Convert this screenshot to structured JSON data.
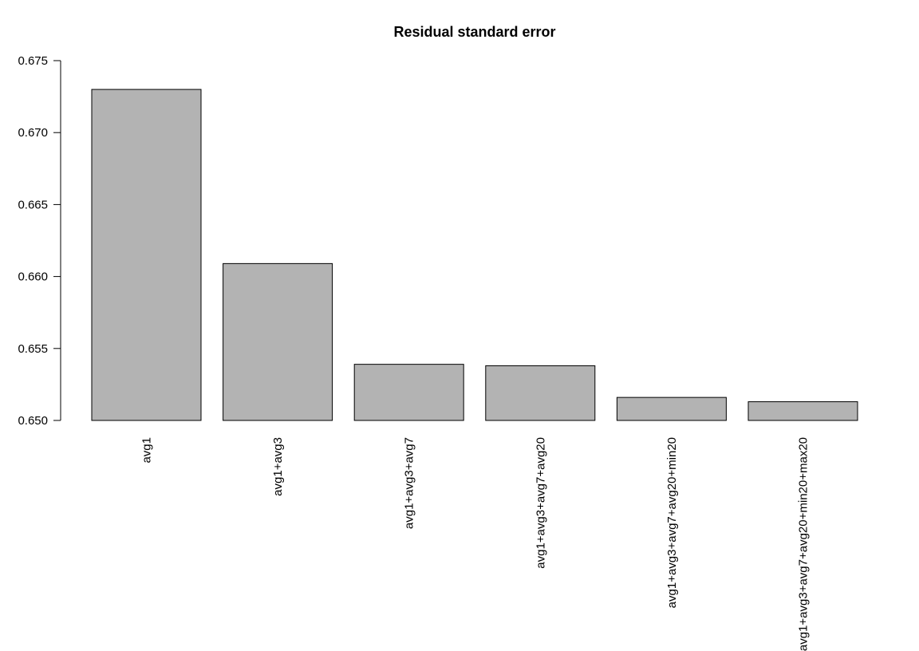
{
  "chart_data": {
    "type": "bar",
    "title": "Residual standard error",
    "xlabel": "",
    "ylabel": "",
    "categories": [
      "avg1",
      "avg1+avg3",
      "avg1+avg3+avg7",
      "avg1+avg3+avg7+avg20",
      "avg1+avg3+avg7+avg20+min20",
      "avg1+avg3+avg7+avg20+min20+max20"
    ],
    "values": [
      0.673,
      0.6609,
      0.6539,
      0.6538,
      0.6516,
      0.6513
    ],
    "ylim": [
      0.65,
      0.675
    ],
    "yticks": [
      "0.650",
      "0.655",
      "0.660",
      "0.665",
      "0.670",
      "0.675"
    ],
    "grid": false,
    "legend": "none",
    "colors": {
      "bar_fill": "#b3b3b3",
      "bar_stroke": "#000000",
      "axis": "#000000"
    }
  }
}
